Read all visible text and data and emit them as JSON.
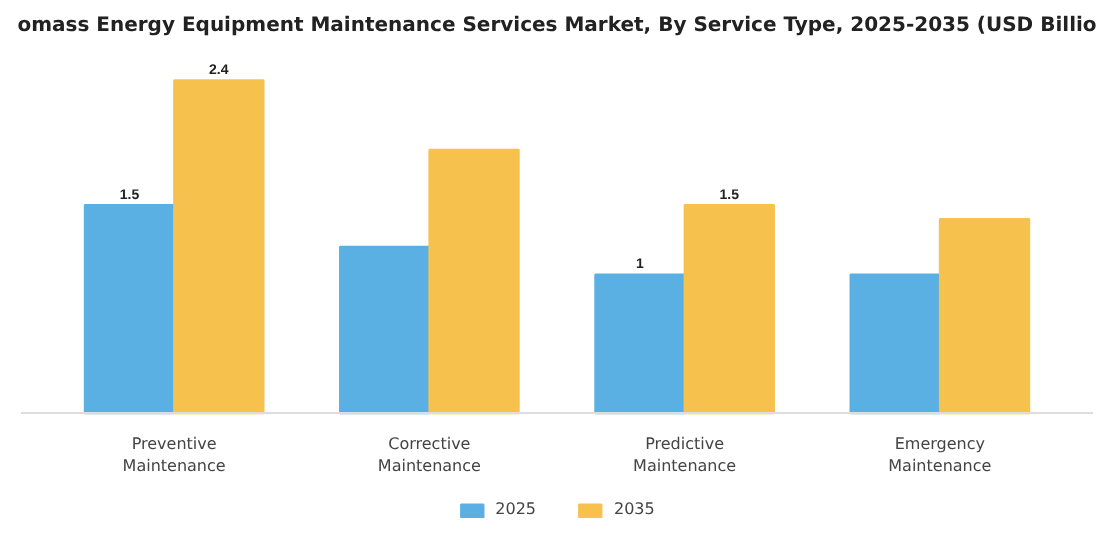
{
  "chart_data": {
    "type": "bar",
    "title": "omass Energy Equipment Maintenance Services Market, By Service Type, 2025-2035 (USD Billio",
    "categories": [
      "Preventive\nMaintenance",
      "Corrective\nMaintenance",
      "Predictive\nMaintenance",
      "Emergency\nMaintenance"
    ],
    "series": [
      {
        "name": "2025",
        "color": "#5aafe3",
        "values": [
          1.5,
          1.2,
          1,
          1
        ],
        "value_labels": [
          "1.5",
          null,
          "1",
          null
        ]
      },
      {
        "name": "2035",
        "color": "#f6c24d",
        "values": [
          2.4,
          1.9,
          1.5,
          1.4
        ],
        "value_labels": [
          "2.4",
          null,
          "1.5",
          null
        ]
      }
    ],
    "legend": "bottom"
  }
}
